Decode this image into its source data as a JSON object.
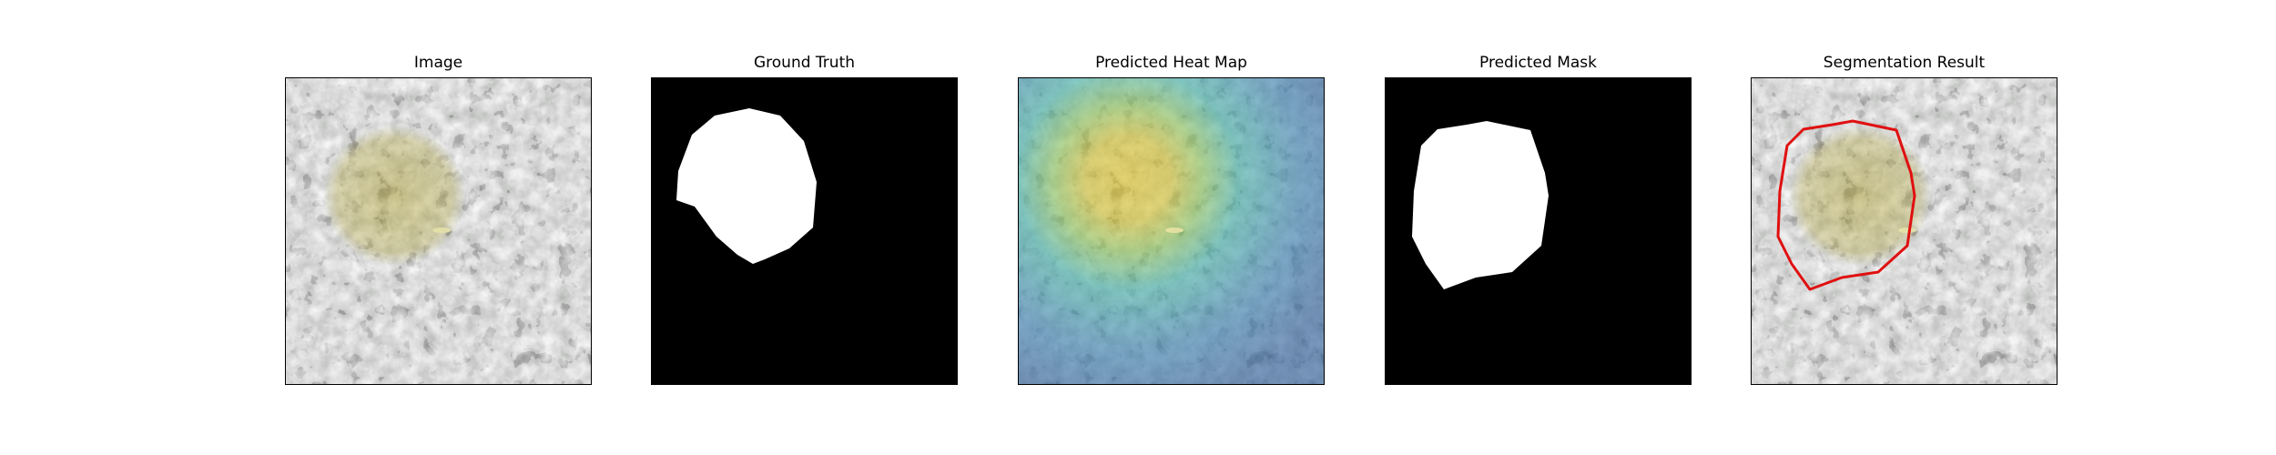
{
  "figure": {
    "panels": [
      {
        "title": "Image",
        "kind": "texture-with-object"
      },
      {
        "title": "Ground Truth",
        "kind": "binary-mask"
      },
      {
        "title": "Predicted Heat Map",
        "kind": "heatmap-overlay"
      },
      {
        "title": "Predicted Mask",
        "kind": "binary-mask"
      },
      {
        "title": "Segmentation Result",
        "kind": "contour-overlay"
      }
    ],
    "colors": {
      "background": "#ffffff",
      "mask_fg": "#ffffff",
      "mask_bg": "#000000",
      "texture_light": "#8a8e8a",
      "texture_dark": "#2b2c2b",
      "object_tint": "#b3a53a",
      "heat_hot": "#d8c22b",
      "heat_mid": "#45b3a6",
      "heat_cold": "#3a6fa3",
      "contour": "#e01010"
    }
  }
}
